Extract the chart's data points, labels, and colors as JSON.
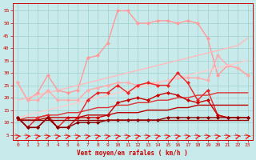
{
  "xlabel": "Vent moyen/en rafales ( km/h )",
  "xlim": [
    -0.5,
    23.5
  ],
  "ylim": [
    3,
    58
  ],
  "yticks": [
    5,
    10,
    15,
    20,
    25,
    30,
    35,
    40,
    45,
    50,
    55
  ],
  "xticks": [
    0,
    1,
    2,
    3,
    4,
    5,
    6,
    7,
    8,
    9,
    10,
    11,
    12,
    13,
    14,
    15,
    16,
    17,
    18,
    19,
    20,
    21,
    22,
    23
  ],
  "bg_color": "#c8eaea",
  "grid_color": "#9ecece",
  "series": [
    {
      "x": [
        0,
        1,
        2,
        3,
        4,
        5,
        6,
        7,
        8,
        9,
        10,
        11,
        12,
        13,
        14,
        15,
        16,
        17,
        18,
        19,
        20,
        21,
        22,
        23
      ],
      "y": [
        26,
        19,
        22,
        29,
        23,
        22,
        23,
        36,
        37,
        42,
        55,
        55,
        50,
        50,
        51,
        51,
        50,
        51,
        50,
        44,
        29,
        33,
        32,
        29
      ],
      "color": "#ff9999",
      "lw": 1.0,
      "marker": "D",
      "ms": 2.0
    },
    {
      "x": [
        0,
        1,
        2,
        3,
        4,
        5,
        6,
        7,
        8,
        9,
        10,
        11,
        12,
        13,
        14,
        15,
        16,
        17,
        18,
        19,
        20,
        21,
        22,
        23
      ],
      "y": [
        19,
        20,
        21,
        22,
        23,
        24,
        25,
        26,
        27,
        28,
        29,
        30,
        31,
        32,
        33,
        34,
        35,
        36,
        37,
        38,
        39,
        40,
        41,
        44
      ],
      "color": "#ffbbbb",
      "lw": 1.0,
      "marker": null,
      "ms": 0
    },
    {
      "x": [
        0,
        1,
        2,
        3,
        4,
        5,
        6,
        7,
        8,
        9,
        10,
        11,
        12,
        13,
        14,
        15,
        16,
        17,
        18,
        19,
        20,
        21,
        22,
        23
      ],
      "y": [
        26,
        19,
        19,
        23,
        19,
        19,
        19,
        23,
        24,
        25,
        26,
        26,
        25,
        26,
        26,
        27,
        28,
        28,
        28,
        27,
        37,
        33,
        32,
        29
      ],
      "color": "#ffaaaa",
      "lw": 1.0,
      "marker": "D",
      "ms": 2.0
    },
    {
      "x": [
        0,
        1,
        2,
        3,
        4,
        5,
        6,
        7,
        8,
        9,
        10,
        11,
        12,
        13,
        14,
        15,
        16,
        17,
        18,
        19,
        20,
        21,
        22,
        23
      ],
      "y": [
        12,
        13,
        14,
        15,
        16,
        17,
        18,
        19,
        20,
        21,
        22,
        23,
        24,
        25,
        26,
        27,
        28,
        29,
        30,
        31,
        32,
        33,
        34,
        35
      ],
      "color": "#ffcccc",
      "lw": 1.0,
      "marker": null,
      "ms": 0
    },
    {
      "x": [
        0,
        1,
        2,
        3,
        4,
        5,
        6,
        7,
        8,
        9,
        10,
        11,
        12,
        13,
        14,
        15,
        16,
        17,
        18,
        19,
        20,
        21,
        22,
        23
      ],
      "y": [
        12,
        8,
        12,
        13,
        8,
        12,
        12,
        19,
        22,
        22,
        25,
        22,
        25,
        26,
        25,
        25,
        30,
        26,
        19,
        23,
        13,
        12,
        12,
        12
      ],
      "color": "#ee2222",
      "lw": 1.0,
      "marker": "D",
      "ms": 2.0
    },
    {
      "x": [
        0,
        1,
        2,
        3,
        4,
        5,
        6,
        7,
        8,
        9,
        10,
        11,
        12,
        13,
        14,
        15,
        16,
        17,
        18,
        19,
        20,
        21,
        22,
        23
      ],
      "y": [
        11,
        12,
        12,
        13,
        13,
        14,
        14,
        15,
        16,
        16,
        17,
        17,
        18,
        18,
        19,
        19,
        20,
        20,
        21,
        21,
        22,
        22,
        22,
        22
      ],
      "color": "#dd3333",
      "lw": 1.0,
      "marker": null,
      "ms": 0
    },
    {
      "x": [
        0,
        1,
        2,
        3,
        4,
        5,
        6,
        7,
        8,
        9,
        10,
        11,
        12,
        13,
        14,
        15,
        16,
        17,
        18,
        19,
        20,
        21,
        22,
        23
      ],
      "y": [
        12,
        8,
        8,
        12,
        8,
        8,
        12,
        12,
        12,
        13,
        18,
        19,
        20,
        19,
        21,
        22,
        21,
        19,
        18,
        19,
        13,
        12,
        12,
        12
      ],
      "color": "#cc0000",
      "lw": 1.0,
      "marker": "D",
      "ms": 2.0
    },
    {
      "x": [
        0,
        1,
        2,
        3,
        4,
        5,
        6,
        7,
        8,
        9,
        10,
        11,
        12,
        13,
        14,
        15,
        16,
        17,
        18,
        19,
        20,
        21,
        22,
        23
      ],
      "y": [
        11,
        11,
        11,
        12,
        12,
        12,
        12,
        13,
        13,
        13,
        14,
        14,
        14,
        15,
        15,
        15,
        16,
        16,
        17,
        17,
        17,
        17,
        17,
        17
      ],
      "color": "#bb0000",
      "lw": 1.0,
      "marker": null,
      "ms": 0
    },
    {
      "x": [
        0,
        1,
        2,
        3,
        4,
        5,
        6,
        7,
        8,
        9,
        10,
        11,
        12,
        13,
        14,
        15,
        16,
        17,
        18,
        19,
        20,
        21,
        22,
        23
      ],
      "y": [
        12,
        8,
        8,
        12,
        8,
        8,
        10,
        10,
        10,
        11,
        11,
        11,
        11,
        11,
        11,
        12,
        12,
        12,
        12,
        12,
        12,
        12,
        12,
        12
      ],
      "color": "#880000",
      "lw": 1.0,
      "marker": "D",
      "ms": 2.0
    },
    {
      "x": [
        0,
        1,
        2,
        3,
        4,
        5,
        6,
        7,
        8,
        9,
        10,
        11,
        12,
        13,
        14,
        15,
        16,
        17,
        18,
        19,
        20,
        21,
        22,
        23
      ],
      "y": [
        11,
        11,
        11,
        11,
        11,
        11,
        11,
        11,
        11,
        11,
        11,
        11,
        11,
        11,
        11,
        11,
        11,
        11,
        11,
        11,
        11,
        11,
        11,
        11
      ],
      "color": "#990000",
      "lw": 1.0,
      "marker": null,
      "ms": 0
    }
  ]
}
